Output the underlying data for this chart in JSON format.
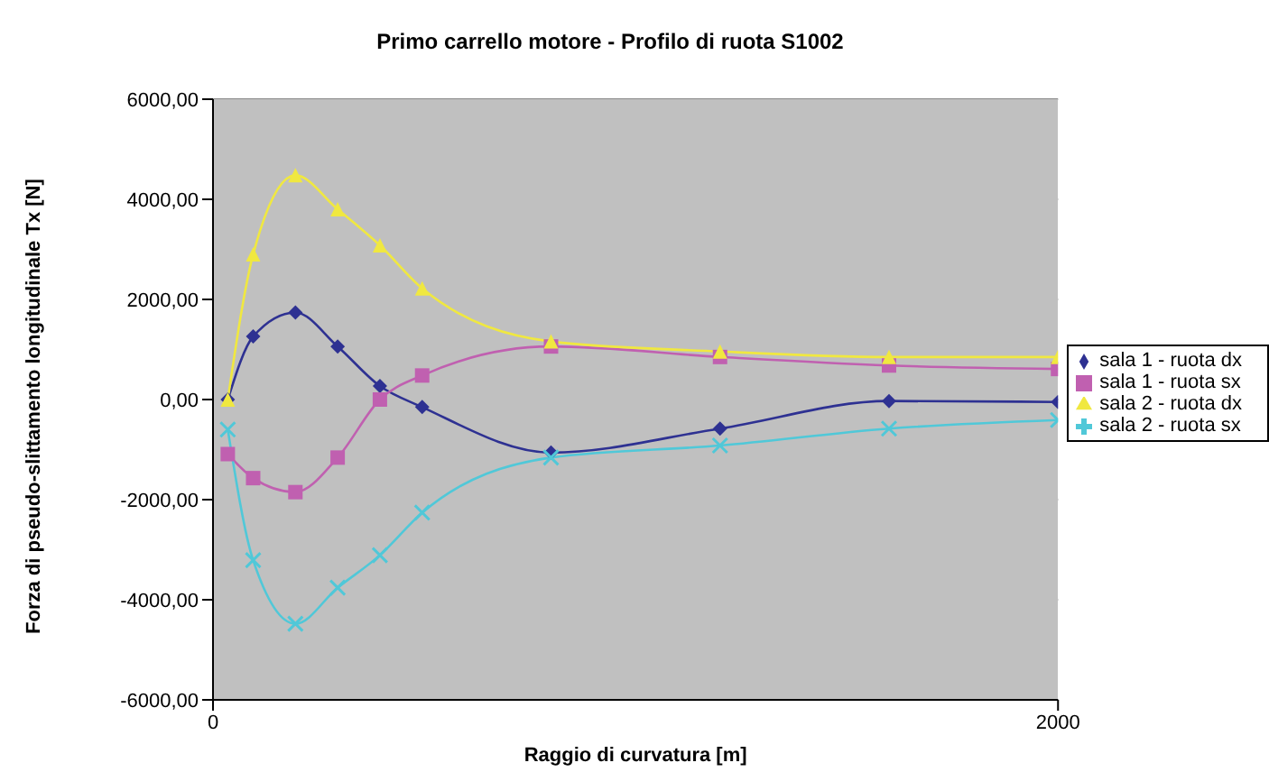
{
  "chart_data": {
    "type": "line",
    "title": "Primo carrello motore - Profilo di ruota S1002",
    "xlabel": "Raggio di curvatura [m]",
    "ylabel": "Forza di pseudo-slittamento longitudinale Tx [N]",
    "x": [
      35,
      95,
      195,
      295,
      395,
      495,
      800,
      1200,
      1600,
      2000
    ],
    "xlim": [
      0,
      2000
    ],
    "xticks": [
      0,
      2000
    ],
    "ylim": [
      -6000,
      6000
    ],
    "yticks": [
      {
        "value": -6000,
        "label": "-6000,00"
      },
      {
        "value": -4000,
        "label": "-4000,00"
      },
      {
        "value": -2000,
        "label": "-2000,00"
      },
      {
        "value": 0,
        "label": "0,00"
      },
      {
        "value": 2000,
        "label": "2000,00"
      },
      {
        "value": 4000,
        "label": "4000,00"
      },
      {
        "value": 6000,
        "label": "6000,00"
      }
    ],
    "grid": "y",
    "legend": "right",
    "series": [
      {
        "name": "sala 1 - ruota dx",
        "color": "#2e3192",
        "marker": "diamond",
        "values": [
          0,
          1260,
          1740,
          1060,
          270,
          -150,
          -1060,
          -580,
          -30,
          -50
        ]
      },
      {
        "name": "sala 1 - ruota sx",
        "color": "#c060b0",
        "marker": "square",
        "values": [
          -1090,
          -1570,
          -1850,
          -1160,
          0,
          480,
          1060,
          850,
          680,
          610
        ]
      },
      {
        "name": "sala 2 - ruota dx",
        "color": "#f0e840",
        "marker": "triangle",
        "values": [
          0,
          2900,
          4480,
          3800,
          3080,
          2220,
          1160,
          960,
          850,
          850
        ]
      },
      {
        "name": "sala 2 - ruota sx",
        "color": "#50c8d8",
        "marker": "cross",
        "values": [
          -600,
          -3210,
          -4480,
          -3760,
          -3110,
          -2260,
          -1160,
          -920,
          -580,
          -410
        ]
      }
    ]
  }
}
